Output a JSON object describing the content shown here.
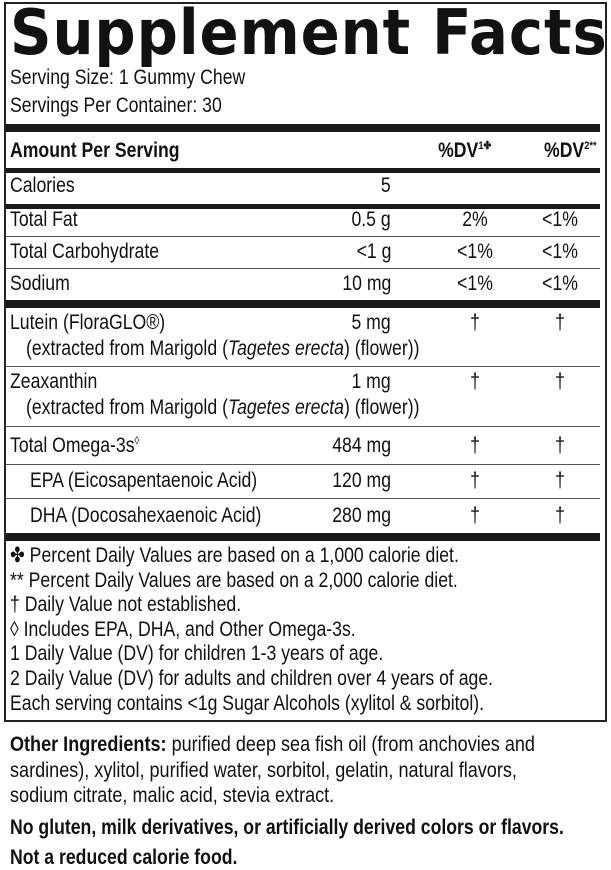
{
  "title": "Supplement Facts",
  "serving_size": "Serving Size: 1 Gummy Chew",
  "servings_per_container": "Servings Per Container: 30",
  "header": {
    "amount": "Amount Per Serving",
    "dv1": "%DV",
    "dv1_sup": "1✤",
    "dv2": "%DV",
    "dv2_sup": "2**"
  },
  "rows": [
    {
      "name": "Calories",
      "amount": "5",
      "dv1": "",
      "dv2": ""
    },
    {
      "name": "Total Fat",
      "amount": "0.5 g",
      "dv1": "2%",
      "dv2": "<1%"
    },
    {
      "name": "Total Carbohydrate",
      "amount": "<1 g",
      "dv1": "<1%",
      "dv2": "<1%"
    },
    {
      "name": "Sodium",
      "amount": "10 mg",
      "dv1": "<1%",
      "dv2": "<1%"
    },
    {
      "name": "Lutein (FloraGLO®)",
      "amount": "5 mg",
      "dv1": "†",
      "dv2": "†",
      "sub_pre": "(extracted from Marigold (",
      "sub_italic": "Tagetes erecta",
      "sub_post": ") (flower))"
    },
    {
      "name": "Zeaxanthin",
      "amount": "1 mg",
      "dv1": "†",
      "dv2": "†",
      "sub_pre": "(extracted from Marigold (",
      "sub_italic": "Tagetes erecta",
      "sub_post": ") (flower))"
    },
    {
      "name": "Total Omega-3s",
      "name_sup": "◊",
      "amount": "484 mg",
      "dv1": "†",
      "dv2": "†"
    },
    {
      "name": "EPA (Eicosapentaenoic Acid)",
      "amount": "120 mg",
      "dv1": "†",
      "dv2": "†"
    },
    {
      "name": "DHA (Docosahexaenoic Acid)",
      "amount": "280 mg",
      "dv1": "†",
      "dv2": "†"
    }
  ],
  "footnotes": [
    "✤ Percent Daily Values are based on a 1,000 calorie diet.",
    "** Percent Daily Values are based on a 2,000 calorie diet.",
    "†  Daily Value not established.",
    "◊  Includes EPA, DHA, and Other Omega-3s.",
    "1  Daily Value (DV) for children 1-3 years of age.",
    "2  Daily Value (DV) for adults and children over 4 years of age.",
    "Each serving contains <1g Sugar Alcohols (xylitol & sorbitol)."
  ],
  "other_ingredients": {
    "label": "Other Ingredients:",
    "text": " purified deep sea fish oil (from anchovies and sardines), xylitol, purified water, sorbitol, gelatin, natural flavors, sodium citrate, malic acid, stevia extract."
  },
  "statements": [
    "No gluten, milk derivatives, or artificially derived colors or flavors.",
    "Not a reduced calorie food."
  ]
}
